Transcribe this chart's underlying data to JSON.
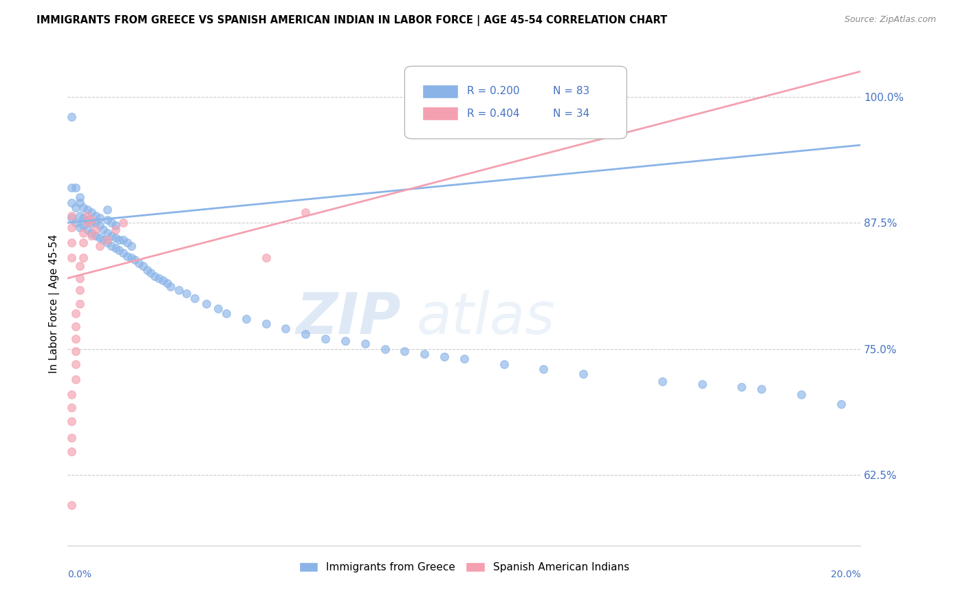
{
  "title": "IMMIGRANTS FROM GREECE VS SPANISH AMERICAN INDIAN IN LABOR FORCE | AGE 45-54 CORRELATION CHART",
  "source": "Source: ZipAtlas.com",
  "ylabel": "In Labor Force | Age 45-54",
  "ylabel_ticks": [
    0.625,
    0.75,
    0.875,
    1.0
  ],
  "ylabel_tick_labels": [
    "62.5%",
    "75.0%",
    "87.5%",
    "100.0%"
  ],
  "xlim": [
    0.0,
    0.2
  ],
  "ylim": [
    0.555,
    1.035
  ],
  "watermark_text": "ZIPatlas",
  "blue_color": "#8ab4e8",
  "pink_color": "#f4a0b0",
  "blue_trend_x": [
    0.0,
    0.2
  ],
  "blue_trend_y": [
    0.875,
    0.952
  ],
  "pink_trend_x": [
    0.0,
    0.2
  ],
  "pink_trend_y": [
    0.82,
    1.025
  ],
  "blue_scatter_x": [
    0.001,
    0.001,
    0.001,
    0.001,
    0.002,
    0.002,
    0.002,
    0.003,
    0.003,
    0.003,
    0.003,
    0.004,
    0.004,
    0.004,
    0.005,
    0.005,
    0.005,
    0.006,
    0.006,
    0.006,
    0.007,
    0.007,
    0.007,
    0.008,
    0.008,
    0.008,
    0.009,
    0.009,
    0.01,
    0.01,
    0.01,
    0.01,
    0.011,
    0.011,
    0.011,
    0.012,
    0.012,
    0.012,
    0.013,
    0.013,
    0.014,
    0.014,
    0.015,
    0.015,
    0.016,
    0.016,
    0.017,
    0.018,
    0.019,
    0.02,
    0.021,
    0.022,
    0.023,
    0.024,
    0.025,
    0.026,
    0.028,
    0.03,
    0.032,
    0.035,
    0.038,
    0.04,
    0.045,
    0.05,
    0.055,
    0.06,
    0.065,
    0.07,
    0.075,
    0.08,
    0.085,
    0.09,
    0.095,
    0.1,
    0.11,
    0.12,
    0.13,
    0.15,
    0.16,
    0.17,
    0.175,
    0.185,
    0.195
  ],
  "blue_scatter_y": [
    0.88,
    0.895,
    0.91,
    0.98,
    0.875,
    0.89,
    0.91,
    0.87,
    0.882,
    0.895,
    0.9,
    0.872,
    0.88,
    0.89,
    0.868,
    0.878,
    0.888,
    0.865,
    0.875,
    0.885,
    0.862,
    0.875,
    0.882,
    0.86,
    0.872,
    0.88,
    0.858,
    0.868,
    0.855,
    0.865,
    0.878,
    0.888,
    0.852,
    0.862,
    0.875,
    0.85,
    0.86,
    0.872,
    0.848,
    0.858,
    0.845,
    0.858,
    0.842,
    0.855,
    0.84,
    0.852,
    0.838,
    0.835,
    0.832,
    0.828,
    0.825,
    0.822,
    0.82,
    0.818,
    0.815,
    0.812,
    0.808,
    0.805,
    0.8,
    0.795,
    0.79,
    0.785,
    0.78,
    0.775,
    0.77,
    0.765,
    0.76,
    0.758,
    0.755,
    0.75,
    0.748,
    0.745,
    0.742,
    0.74,
    0.735,
    0.73,
    0.725,
    0.718,
    0.715,
    0.712,
    0.71,
    0.705,
    0.695
  ],
  "pink_scatter_x": [
    0.001,
    0.001,
    0.001,
    0.001,
    0.001,
    0.001,
    0.001,
    0.001,
    0.001,
    0.001,
    0.002,
    0.002,
    0.002,
    0.002,
    0.002,
    0.002,
    0.003,
    0.003,
    0.003,
    0.003,
    0.004,
    0.004,
    0.004,
    0.005,
    0.005,
    0.006,
    0.006,
    0.007,
    0.008,
    0.01,
    0.012,
    0.014,
    0.05,
    0.06
  ],
  "pink_scatter_y": [
    0.595,
    0.648,
    0.662,
    0.678,
    0.692,
    0.705,
    0.84,
    0.855,
    0.87,
    0.882,
    0.72,
    0.735,
    0.748,
    0.76,
    0.772,
    0.785,
    0.795,
    0.808,
    0.82,
    0.832,
    0.84,
    0.855,
    0.865,
    0.875,
    0.882,
    0.862,
    0.878,
    0.868,
    0.852,
    0.858,
    0.868,
    0.875,
    0.84,
    0.885
  ],
  "label_color": "#4472c4",
  "grid_color": "#cccccc",
  "legend_blue_label_r": "R = 0.200",
  "legend_blue_label_n": "N = 83",
  "legend_pink_label_r": "R = 0.404",
  "legend_pink_label_n": "N = 34",
  "bottom_legend_blue": "Immigrants from Greece",
  "bottom_legend_pink": "Spanish American Indians"
}
